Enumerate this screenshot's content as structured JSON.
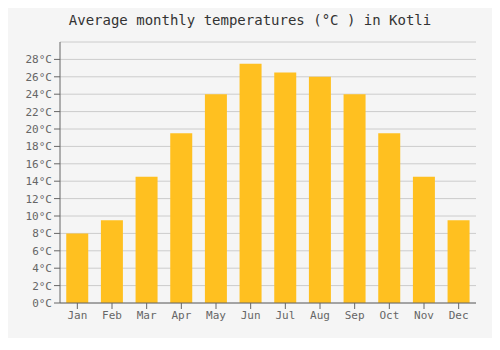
{
  "chart_data": {
    "type": "bar",
    "title": "Average monthly temperatures (°C ) in Kotli",
    "categories": [
      "Jan",
      "Feb",
      "Mar",
      "Apr",
      "May",
      "Jun",
      "Jul",
      "Aug",
      "Sep",
      "Oct",
      "Nov",
      "Dec"
    ],
    "values": [
      8,
      9.5,
      14.5,
      19.5,
      24,
      27.5,
      26.5,
      26,
      24,
      19.5,
      14.5,
      9.5
    ],
    "color": "#FFC020",
    "ylim": [
      0,
      30
    ],
    "yticks": [
      {
        "value": 0,
        "label": "0°C"
      },
      {
        "value": 2,
        "label": "2°C"
      },
      {
        "value": 4,
        "label": "4°C"
      },
      {
        "value": 6,
        "label": "6°C"
      },
      {
        "value": 8,
        "label": "8°C"
      },
      {
        "value": 10,
        "label": "10°C"
      },
      {
        "value": 12,
        "label": "12°C"
      },
      {
        "value": 14,
        "label": "14°C"
      },
      {
        "value": 16,
        "label": "16°C"
      },
      {
        "value": 18,
        "label": "18°C"
      },
      {
        "value": 20,
        "label": "20°C"
      },
      {
        "value": 22,
        "label": "22°C"
      },
      {
        "value": 24,
        "label": "24°C"
      },
      {
        "value": 26,
        "label": "26°C"
      },
      {
        "value": 28,
        "label": "28°C"
      }
    ],
    "grid": true
  }
}
